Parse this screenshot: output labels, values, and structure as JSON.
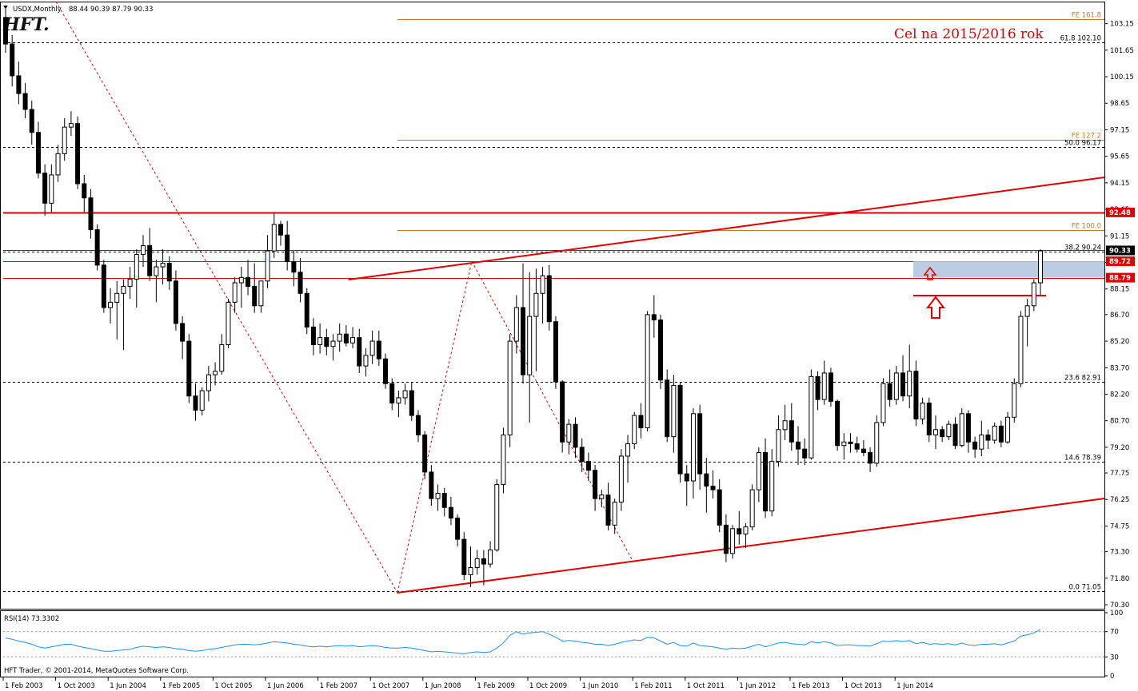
{
  "header": {
    "symbol": "USDX,Monthly",
    "ohlc": "88.44 90.39 87.79 90.33",
    "logo": "HFT."
  },
  "target_text": "Cel na 2015/2016 rok",
  "copyright": "HFT Trader, © 2001-2014, MetaQuotes Software Corp.",
  "rsi_label": "RSI(14) 73.3302",
  "colors": {
    "bull": "#ffffff",
    "bear": "#000000",
    "red": "#e00000",
    "fe_line": "#c87a2a",
    "rsi_line": "#1e90ff",
    "zone": "#b0c4de"
  },
  "chart_data": {
    "type": "candlestick",
    "series_name": "USDX,Monthly",
    "ylim": [
      70.3,
      103.9
    ],
    "y_ticks": [
      "103.15",
      "101.65",
      "100.15",
      "98.65",
      "97.15",
      "95.65",
      "94.15",
      "92.65",
      "91.15",
      "89.65",
      "88.15",
      "86.70",
      "85.20",
      "83.70",
      "82.20",
      "80.70",
      "79.20",
      "77.75",
      "76.25",
      "74.75",
      "73.30",
      "71.80",
      "70.30"
    ],
    "x_ticks": [
      "1 Feb 2003",
      "1 Oct 2003",
      "1 Jun 2004",
      "1 Feb 2005",
      "1 Oct 2005",
      "1 Jun 2006",
      "1 Feb 2007",
      "1 Oct 2007",
      "1 Jun 2008",
      "1 Feb 2009",
      "1 Oct 2009",
      "1 Jun 2010",
      "1 Feb 2011",
      "1 Oct 2011",
      "1 Jun 2012",
      "1 Feb 2013",
      "1 Oct 2013",
      "1 Jun 2014"
    ],
    "candles": [
      [
        103.5,
        104.1,
        101.5,
        102.0
      ],
      [
        102.0,
        102.5,
        99.6,
        100.2
      ],
      [
        100.2,
        101.0,
        98.6,
        99.2
      ],
      [
        99.2,
        99.8,
        97.8,
        98.3
      ],
      [
        98.3,
        98.8,
        96.3,
        97.0
      ],
      [
        97.0,
        97.6,
        94.4,
        94.7
      ],
      [
        94.7,
        95.2,
        92.3,
        93.0
      ],
      [
        93.0,
        95.2,
        92.5,
        94.6
      ],
      [
        94.6,
        96.3,
        94.2,
        95.8
      ],
      [
        95.8,
        97.8,
        95.4,
        97.3
      ],
      [
        97.3,
        98.2,
        96.8,
        97.5
      ],
      [
        97.5,
        97.9,
        93.8,
        94.1
      ],
      [
        94.1,
        94.6,
        92.5,
        93.3
      ],
      [
        93.3,
        93.8,
        91.0,
        91.5
      ],
      [
        91.5,
        91.8,
        89.2,
        89.5
      ],
      [
        89.5,
        89.8,
        86.8,
        87.1
      ],
      [
        87.1,
        88.2,
        86.2,
        87.4
      ],
      [
        87.4,
        88.6,
        85.3,
        87.9
      ],
      [
        87.9,
        88.7,
        84.7,
        88.3
      ],
      [
        88.3,
        89.4,
        87.6,
        88.7
      ],
      [
        88.7,
        90.4,
        87.1,
        90.1
      ],
      [
        90.1,
        91.2,
        89.4,
        90.6
      ],
      [
        90.6,
        91.6,
        88.6,
        88.9
      ],
      [
        88.9,
        89.8,
        87.4,
        89.4
      ],
      [
        89.4,
        90.4,
        88.4,
        89.6
      ],
      [
        89.6,
        90.0,
        88.1,
        88.6
      ],
      [
        88.6,
        89.2,
        85.8,
        86.2
      ],
      [
        86.2,
        86.6,
        84.2,
        85.2
      ],
      [
        85.2,
        85.6,
        81.7,
        82.1
      ],
      [
        82.1,
        82.8,
        80.7,
        81.3
      ],
      [
        81.3,
        82.6,
        81.0,
        82.4
      ],
      [
        82.4,
        83.8,
        81.8,
        83.3
      ],
      [
        83.3,
        84.0,
        82.7,
        83.5
      ],
      [
        83.5,
        85.6,
        83.3,
        85.0
      ],
      [
        85.0,
        87.6,
        84.8,
        87.4
      ],
      [
        87.4,
        88.8,
        86.8,
        88.5
      ],
      [
        88.5,
        89.4,
        87.1,
        88.8
      ],
      [
        88.8,
        89.8,
        87.8,
        88.3
      ],
      [
        88.3,
        89.6,
        86.8,
        87.2
      ],
      [
        87.2,
        88.6,
        86.8,
        88.6
      ],
      [
        88.6,
        91.2,
        88.2,
        90.3
      ],
      [
        90.3,
        92.5,
        89.9,
        91.8
      ],
      [
        91.8,
        92.0,
        90.6,
        91.2
      ],
      [
        91.2,
        92.0,
        89.2,
        89.7
      ],
      [
        89.7,
        90.3,
        88.3,
        89.1
      ],
      [
        89.1,
        89.9,
        87.4,
        87.9
      ],
      [
        87.9,
        88.2,
        85.6,
        86.0
      ],
      [
        86.0,
        86.5,
        84.4,
        85.0
      ],
      [
        85.0,
        86.2,
        84.5,
        85.4
      ],
      [
        85.4,
        85.9,
        84.4,
        84.9
      ],
      [
        84.9,
        85.6,
        84.1,
        85.2
      ],
      [
        85.2,
        86.2,
        84.6,
        85.6
      ],
      [
        85.6,
        86.1,
        84.9,
        85.1
      ],
      [
        85.1,
        86.0,
        84.8,
        85.4
      ],
      [
        85.4,
        85.9,
        83.4,
        83.8
      ],
      [
        83.8,
        84.8,
        83.2,
        84.4
      ],
      [
        84.4,
        85.8,
        83.9,
        85.2
      ],
      [
        85.2,
        85.8,
        83.8,
        84.2
      ],
      [
        84.2,
        84.5,
        82.5,
        82.8
      ],
      [
        82.8,
        83.1,
        81.3,
        81.7
      ],
      [
        81.7,
        82.4,
        80.9,
        82.0
      ],
      [
        82.0,
        82.8,
        81.6,
        82.4
      ],
      [
        82.4,
        82.9,
        80.7,
        81.0
      ],
      [
        81.0,
        81.3,
        79.5,
        79.9
      ],
      [
        79.9,
        80.1,
        77.4,
        77.8
      ],
      [
        77.8,
        78.2,
        75.9,
        76.3
      ],
      [
        76.3,
        77.1,
        75.6,
        76.6
      ],
      [
        76.6,
        76.9,
        75.3,
        75.8
      ],
      [
        75.8,
        76.4,
        74.8,
        75.2
      ],
      [
        75.2,
        75.4,
        73.6,
        74.0
      ],
      [
        74.0,
        74.4,
        71.7,
        72.0
      ],
      [
        72.0,
        73.6,
        71.3,
        72.4
      ],
      [
        72.4,
        73.4,
        72.0,
        72.9
      ],
      [
        72.9,
        73.4,
        71.4,
        72.6
      ],
      [
        72.6,
        73.9,
        72.4,
        73.4
      ],
      [
        73.4,
        77.4,
        73.3,
        77.1
      ],
      [
        77.1,
        80.3,
        76.6,
        79.9
      ],
      [
        79.9,
        85.6,
        79.2,
        85.2
      ],
      [
        85.2,
        87.8,
        84.5,
        87.1
      ],
      [
        87.1,
        89.6,
        82.8,
        83.3
      ],
      [
        83.3,
        89.1,
        80.6,
        86.6
      ],
      [
        86.6,
        89.3,
        83.5,
        87.9
      ],
      [
        87.9,
        89.4,
        86.2,
        88.9
      ],
      [
        88.9,
        89.5,
        85.8,
        86.3
      ],
      [
        86.3,
        86.6,
        82.5,
        82.9
      ],
      [
        82.9,
        83.0,
        78.9,
        79.5
      ],
      [
        79.5,
        80.8,
        78.8,
        80.5
      ],
      [
        80.5,
        80.9,
        78.6,
        79.2
      ],
      [
        79.2,
        79.7,
        77.8,
        78.4
      ],
      [
        78.4,
        78.9,
        77.3,
        77.9
      ],
      [
        77.9,
        78.2,
        75.6,
        76.3
      ],
      [
        76.3,
        76.8,
        75.8,
        76.5
      ],
      [
        76.5,
        77.2,
        74.5,
        74.8
      ],
      [
        74.8,
        76.3,
        74.3,
        76.1
      ],
      [
        76.1,
        79.1,
        75.6,
        78.7
      ],
      [
        78.7,
        79.9,
        77.2,
        79.4
      ],
      [
        79.4,
        81.2,
        79.1,
        81.0
      ],
      [
        81.0,
        81.7,
        79.7,
        80.3
      ],
      [
        80.3,
        86.9,
        80.1,
        86.7
      ],
      [
        86.7,
        87.8,
        85.4,
        86.4
      ],
      [
        86.4,
        86.7,
        82.5,
        83.0
      ],
      [
        83.0,
        83.6,
        79.5,
        79.8
      ],
      [
        79.8,
        83.3,
        78.9,
        82.7
      ],
      [
        82.7,
        82.9,
        77.2,
        77.7
      ],
      [
        77.7,
        78.2,
        75.9,
        77.3
      ],
      [
        77.3,
        81.4,
        76.3,
        81.1
      ],
      [
        81.1,
        81.6,
        76.8,
        77.7
      ],
      [
        77.7,
        78.6,
        75.5,
        77.0
      ],
      [
        77.0,
        77.9,
        76.3,
        76.8
      ],
      [
        76.8,
        77.4,
        74.4,
        74.8
      ],
      [
        74.8,
        75.4,
        72.7,
        73.2
      ],
      [
        73.2,
        74.8,
        72.9,
        74.6
      ],
      [
        74.6,
        75.6,
        73.7,
        74.3
      ],
      [
        74.3,
        74.9,
        73.5,
        74.7
      ],
      [
        74.7,
        77.1,
        74.5,
        76.8
      ],
      [
        76.8,
        79.2,
        76.1,
        78.9
      ],
      [
        78.9,
        79.7,
        75.2,
        75.6
      ],
      [
        75.6,
        79.1,
        75.3,
        78.4
      ],
      [
        78.4,
        81.0,
        78.1,
        80.2
      ],
      [
        80.2,
        81.6,
        79.6,
        80.7
      ],
      [
        80.7,
        81.7,
        79.0,
        79.5
      ],
      [
        79.5,
        80.4,
        78.2,
        79.1
      ],
      [
        79.1,
        79.7,
        78.2,
        78.6
      ],
      [
        78.6,
        83.6,
        78.5,
        83.2
      ],
      [
        83.2,
        83.5,
        81.3,
        81.9
      ],
      [
        81.9,
        84.1,
        81.6,
        83.4
      ],
      [
        83.4,
        83.7,
        81.5,
        81.8
      ],
      [
        81.8,
        81.9,
        79.0,
        79.3
      ],
      [
        79.3,
        80.0,
        78.5,
        79.5
      ],
      [
        79.5,
        80.0,
        78.9,
        79.4
      ],
      [
        79.4,
        79.8,
        78.9,
        79.1
      ],
      [
        79.1,
        79.6,
        78.7,
        78.9
      ],
      [
        78.9,
        79.2,
        77.8,
        78.3
      ],
      [
        78.3,
        81.0,
        78.1,
        80.6
      ],
      [
        80.6,
        83.1,
        80.4,
        82.8
      ],
      [
        82.8,
        83.6,
        81.5,
        81.9
      ],
      [
        81.9,
        83.8,
        81.6,
        83.4
      ],
      [
        83.4,
        84.4,
        81.8,
        82.1
      ],
      [
        82.1,
        85.0,
        81.4,
        83.5
      ],
      [
        83.5,
        84.1,
        80.4,
        80.8
      ],
      [
        80.8,
        82.0,
        80.5,
        81.7
      ],
      [
        81.7,
        82.0,
        79.5,
        79.9
      ],
      [
        79.9,
        81.0,
        79.1,
        80.2
      ],
      [
        80.2,
        80.4,
        79.5,
        79.8
      ],
      [
        79.8,
        80.7,
        79.6,
        80.5
      ],
      [
        80.5,
        80.9,
        79.1,
        79.3
      ],
      [
        79.3,
        81.4,
        79.2,
        81.1
      ],
      [
        81.1,
        81.3,
        78.9,
        79.5
      ],
      [
        79.5,
        79.8,
        78.6,
        79.1
      ],
      [
        79.1,
        80.7,
        78.7,
        79.9
      ],
      [
        79.9,
        80.2,
        79.1,
        79.6
      ],
      [
        79.6,
        80.6,
        79.4,
        80.4
      ],
      [
        80.4,
        80.7,
        79.2,
        79.5
      ],
      [
        79.5,
        81.2,
        79.4,
        80.9
      ],
      [
        80.9,
        83.1,
        80.6,
        82.8
      ],
      [
        82.8,
        86.9,
        82.6,
        86.6
      ],
      [
        86.6,
        87.6,
        84.9,
        87.2
      ],
      [
        87.2,
        88.7,
        86.9,
        88.5
      ],
      [
        88.5,
        90.4,
        87.8,
        90.3
      ]
    ],
    "horizontal_levels": [
      {
        "label": "FE 161.8",
        "value": 103.4,
        "style": "fe"
      },
      {
        "label": "61.8  102.10",
        "value": 102.1,
        "style": "fib"
      },
      {
        "label": "FE 127.2",
        "value": 96.6,
        "style": "fe"
      },
      {
        "label": "50.0  96.17",
        "value": 96.17,
        "style": "fib"
      },
      {
        "label": "FE 100.0",
        "value": 91.5,
        "style": "fe"
      },
      {
        "label": "38.2  90.24",
        "value": 90.24,
        "style": "fib"
      },
      {
        "label": "23.6  82.91",
        "value": 82.91,
        "style": "fib"
      },
      {
        "label": "14.6  78.39",
        "value": 78.39,
        "style": "fib"
      },
      {
        "label": "0.0  71.05",
        "value": 71.05,
        "style": "fib"
      }
    ],
    "price_boxes": [
      {
        "label": "92.48",
        "value": 92.48,
        "color": "#e00000"
      },
      {
        "label": "90.33",
        "value": 90.33,
        "color": "#000000"
      },
      {
        "label": "89.72",
        "value": 89.72,
        "color": "#e00000"
      },
      {
        "label": "88.79",
        "value": 88.79,
        "color": "#e00000"
      }
    ],
    "rsi": {
      "label": "RSI(14) 73.3302",
      "ylim": [
        0,
        100
      ],
      "ticks": [
        "100",
        "70",
        "30",
        "0"
      ],
      "values": [
        60,
        58,
        55,
        53,
        50,
        46,
        44,
        46,
        48,
        50,
        50,
        47,
        45,
        43,
        41,
        39,
        39,
        40,
        41,
        42,
        45,
        47,
        46,
        45,
        46,
        45,
        43,
        42,
        40,
        39,
        40,
        42,
        43,
        45,
        47,
        49,
        50,
        50,
        49,
        50,
        52,
        54,
        53,
        52,
        50,
        49,
        47,
        46,
        47,
        46,
        47,
        48,
        47,
        48,
        46,
        47,
        48,
        47,
        45,
        44,
        44,
        45,
        44,
        42,
        40,
        38,
        39,
        38,
        37,
        36,
        35,
        37,
        38,
        37,
        38,
        44,
        52,
        64,
        70,
        66,
        68,
        69,
        70,
        66,
        61,
        55,
        56,
        55,
        53,
        52,
        50,
        50,
        48,
        50,
        53,
        55,
        57,
        56,
        61,
        60,
        55,
        50,
        53,
        48,
        47,
        52,
        48,
        47,
        46,
        44,
        42,
        44,
        43,
        44,
        47,
        50,
        46,
        49,
        52,
        53,
        51,
        50,
        49,
        54,
        52,
        54,
        52,
        48,
        49,
        49,
        48,
        48,
        47,
        51,
        55,
        54,
        56,
        54,
        56,
        51,
        53,
        50,
        51,
        50,
        51,
        49,
        52,
        49,
        48,
        50,
        50,
        51,
        49,
        52,
        55,
        63,
        65,
        68,
        73
      ]
    }
  }
}
